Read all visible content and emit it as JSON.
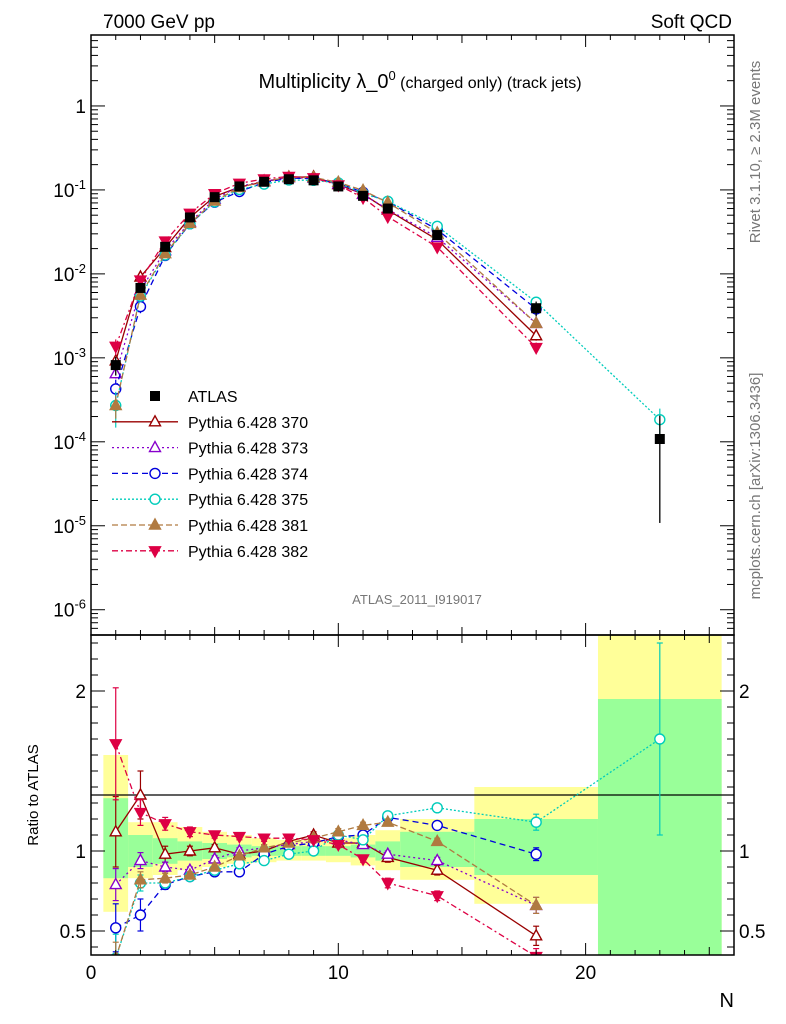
{
  "header": {
    "left": "7000 GeV pp",
    "right": "Soft QCD"
  },
  "side_labels": {
    "rivet": "Rivet 3.1.10, ≥ 2.3M events",
    "mcplots": "mcplots.cern.ch [arXiv:1306.3436]"
  },
  "chart_data": {
    "type": "scatter",
    "title_main": "Multiplicity λ_0",
    "title_sup": "0",
    "title_suffix": " (charged only) (track jets)",
    "analysis_id": "ATLAS_2011_I919017",
    "xlabel": "N",
    "ratio_ylabel": "Ratio to ATLAS",
    "xlim": [
      0,
      26
    ],
    "main_ylim": [
      5e-07,
      7
    ],
    "main_yscale": "log",
    "ratio_ylim": [
      0.35,
      2.35
    ],
    "x_ticks": [
      0,
      10,
      20
    ],
    "main_y_ticks": [
      {
        "v": 1e-06,
        "base": "10",
        "exp": "-6"
      },
      {
        "v": 1e-05,
        "base": "10",
        "exp": "-5"
      },
      {
        "v": 0.0001,
        "base": "10",
        "exp": "-4"
      },
      {
        "v": 0.001,
        "base": "10",
        "exp": "-3"
      },
      {
        "v": 0.01,
        "base": "10",
        "exp": "-2"
      },
      {
        "v": 0.1,
        "base": "10",
        "exp": "-1"
      },
      {
        "v": 1,
        "base": "1",
        "exp": ""
      }
    ],
    "ratio_y_ticks": [
      0.5,
      1,
      2
    ],
    "ratio_bands": [
      {
        "x0": 0.5,
        "x1": 1.5,
        "y_lo": 0.62,
        "y_hi": 1.6,
        "g_lo": 0.83,
        "g_hi": 1.33
      },
      {
        "x0": 1.5,
        "x1": 2.5,
        "y_lo": 0.83,
        "y_hi": 1.18,
        "g_lo": 0.9,
        "g_hi": 1.1
      },
      {
        "x0": 2.5,
        "x1": 3.5,
        "y_lo": 0.85,
        "y_hi": 1.18,
        "g_lo": 0.92,
        "g_hi": 1.08
      },
      {
        "x0": 3.5,
        "x1": 4.5,
        "y_lo": 0.88,
        "y_hi": 1.15,
        "g_lo": 0.94,
        "g_hi": 1.06
      },
      {
        "x0": 4.5,
        "x1": 5.5,
        "y_lo": 0.9,
        "y_hi": 1.12,
        "g_lo": 0.95,
        "g_hi": 1.05
      },
      {
        "x0": 5.5,
        "x1": 6.5,
        "y_lo": 0.92,
        "y_hi": 1.1,
        "g_lo": 0.96,
        "g_hi": 1.04
      },
      {
        "x0": 6.5,
        "x1": 7.5,
        "y_lo": 0.93,
        "y_hi": 1.08,
        "g_lo": 0.97,
        "g_hi": 1.03
      },
      {
        "x0": 7.5,
        "x1": 8.5,
        "y_lo": 0.94,
        "y_hi": 1.07,
        "g_lo": 0.97,
        "g_hi": 1.03
      },
      {
        "x0": 8.5,
        "x1": 9.5,
        "y_lo": 0.94,
        "y_hi": 1.07,
        "g_lo": 0.97,
        "g_hi": 1.03
      },
      {
        "x0": 9.5,
        "x1": 10.5,
        "y_lo": 0.93,
        "y_hi": 1.08,
        "g_lo": 0.97,
        "g_hi": 1.03
      },
      {
        "x0": 10.5,
        "x1": 11.5,
        "y_lo": 0.91,
        "y_hi": 1.1,
        "g_lo": 0.96,
        "g_hi": 1.04
      },
      {
        "x0": 11.5,
        "x1": 12.5,
        "y_lo": 0.88,
        "y_hi": 1.13,
        "g_lo": 0.94,
        "g_hi": 1.06
      },
      {
        "x0": 12.5,
        "x1": 15.5,
        "y_lo": 0.82,
        "y_hi": 1.2,
        "g_lo": 0.9,
        "g_hi": 1.12
      },
      {
        "x0": 15.5,
        "x1": 20.5,
        "y_lo": 0.67,
        "y_hi": 1.4,
        "g_lo": 0.85,
        "g_hi": 1.2
      },
      {
        "x0": 20.5,
        "x1": 25.5,
        "y_lo": 0.3,
        "y_hi": 2.5,
        "g_lo": 0.3,
        "g_hi": 1.95
      }
    ],
    "data": {
      "name": "ATLAS",
      "color": "#000000",
      "x": [
        1,
        2,
        3,
        4,
        5,
        6,
        7,
        8,
        9,
        10,
        11,
        12,
        14,
        18,
        23
      ],
      "y": [
        0.00082,
        0.0068,
        0.021,
        0.047,
        0.082,
        0.11,
        0.125,
        0.134,
        0.13,
        0.11,
        0.085,
        0.06,
        0.029,
        0.0039,
        0.000108
      ],
      "err_rel": [
        0.25,
        0.1,
        0.08,
        0.06,
        0.05,
        0.04,
        0.035,
        0.03,
        0.03,
        0.035,
        0.04,
        0.06,
        0.1,
        0.2,
        0.9
      ]
    },
    "series": [
      {
        "name": "Pythia 6.428 370",
        "color": "#990000",
        "marker": "tri-up-open",
        "dash": "",
        "x": [
          1,
          2,
          3,
          4,
          5,
          6,
          7,
          8,
          9,
          10,
          11,
          12,
          14,
          18
        ],
        "ratio": [
          1.12,
          1.35,
          0.98,
          1.0,
          1.02,
          0.98,
          1.0,
          1.06,
          1.1,
          1.05,
          1.05,
          0.96,
          0.88,
          0.47
        ],
        "ratio_err": [
          0.22,
          0.15,
          0.05,
          0.03,
          0.02,
          0.02,
          0.02,
          0.02,
          0.02,
          0.02,
          0.02,
          0.03,
          0.03,
          0.06
        ]
      },
      {
        "name": "Pythia 6.428 373",
        "color": "#8800cc",
        "marker": "tri-up-open",
        "dash": "2,3",
        "x": [
          1,
          2,
          3,
          4,
          5,
          6,
          7,
          8,
          9,
          10,
          11,
          12,
          14,
          18
        ],
        "ratio": [
          0.79,
          0.94,
          0.9,
          0.88,
          0.95,
          1.0,
          1.02,
          1.04,
          1.06,
          1.07,
          1.04,
          0.98,
          0.94,
          0.66
        ],
        "ratio_err": [
          0.1,
          0.05,
          0.03,
          0.02,
          0.02,
          0.02,
          0.02,
          0.02,
          0.02,
          0.02,
          0.02,
          0.02,
          0.02,
          0.05
        ]
      },
      {
        "name": "Pythia 6.428 374",
        "color": "#0000dd",
        "marker": "circle-open",
        "dash": "6,4",
        "x": [
          1,
          2,
          3,
          4,
          5,
          6,
          7,
          8,
          9,
          10,
          11,
          12,
          14,
          18
        ],
        "ratio": [
          0.52,
          0.6,
          0.79,
          0.84,
          0.87,
          0.87,
          0.98,
          1.03,
          1.05,
          1.09,
          1.1,
          1.21,
          1.16,
          0.98
        ],
        "ratio_err": [
          0.15,
          0.1,
          0.03,
          0.02,
          0.02,
          0.02,
          0.02,
          0.02,
          0.02,
          0.02,
          0.02,
          0.02,
          0.02,
          0.04
        ]
      },
      {
        "name": "Pythia 6.428 375",
        "color": "#00ccbb",
        "marker": "circle-open",
        "dash": "2,2",
        "x": [
          1,
          2,
          3,
          4,
          5,
          6,
          7,
          8,
          9,
          10,
          11,
          12,
          14,
          18,
          23
        ],
        "ratio": [
          0.33,
          0.8,
          0.8,
          0.84,
          0.88,
          0.92,
          0.94,
          0.98,
          1.0,
          1.1,
          1.07,
          1.22,
          1.27,
          1.18,
          1.7
        ],
        "ratio_err": [
          0.15,
          0.05,
          0.03,
          0.02,
          0.02,
          0.02,
          0.02,
          0.02,
          0.02,
          0.02,
          0.02,
          0.02,
          0.02,
          0.05,
          0.6
        ]
      },
      {
        "name": "Pythia 6.428 381",
        "color": "#b07a40",
        "marker": "tri-up-filled",
        "dash": "6,3",
        "x": [
          1,
          2,
          3,
          4,
          5,
          6,
          7,
          8,
          9,
          10,
          11,
          12,
          14,
          18
        ],
        "ratio": [
          0.33,
          0.82,
          0.83,
          0.85,
          0.9,
          0.97,
          1.02,
          1.05,
          1.08,
          1.12,
          1.16,
          1.18,
          1.06,
          0.66
        ],
        "ratio_err": [
          0.1,
          0.05,
          0.03,
          0.02,
          0.02,
          0.02,
          0.02,
          0.02,
          0.02,
          0.02,
          0.02,
          0.02,
          0.02,
          0.05
        ]
      },
      {
        "name": "Pythia 6.428 382",
        "color": "#dd0044",
        "marker": "tri-down-filled",
        "dash": "6,3,2,3",
        "x": [
          1,
          2,
          3,
          4,
          5,
          6,
          7,
          8,
          9,
          10,
          11,
          12,
          14,
          18
        ],
        "ratio": [
          1.67,
          1.24,
          1.17,
          1.12,
          1.1,
          1.09,
          1.08,
          1.08,
          1.07,
          1.04,
          0.95,
          0.8,
          0.72,
          0.34
        ],
        "ratio_err": [
          0.35,
          0.08,
          0.04,
          0.03,
          0.02,
          0.02,
          0.02,
          0.02,
          0.02,
          0.02,
          0.02,
          0.03,
          0.03,
          0.05
        ]
      }
    ]
  }
}
